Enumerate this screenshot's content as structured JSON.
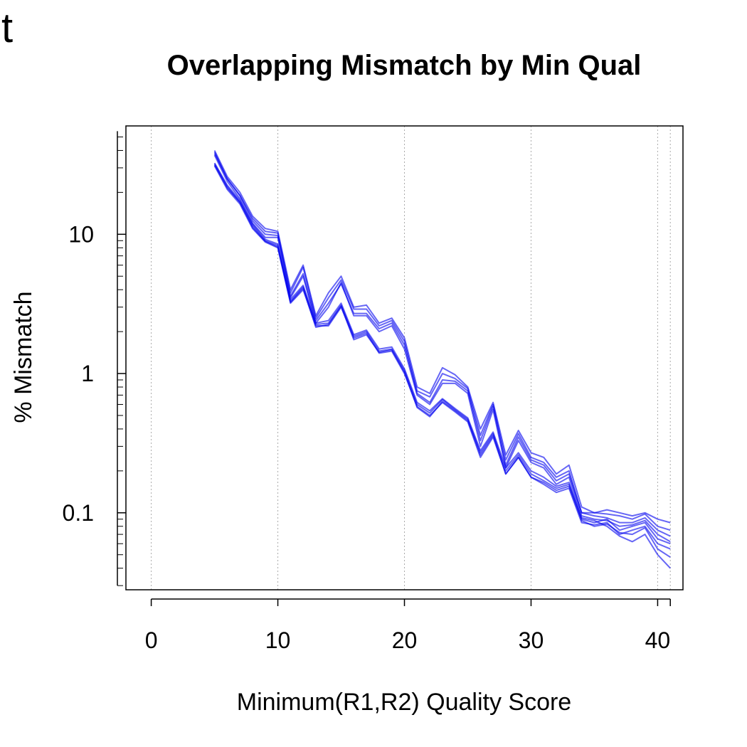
{
  "corner_label": "t",
  "chart_data": {
    "type": "line",
    "title": "Overlapping Mismatch by Min Qual",
    "xlabel": "Minimum(R1,R2) Quality Score",
    "ylabel": "% Mismatch",
    "y_scale": "log",
    "xlim": [
      -2,
      42
    ],
    "ylim": [
      0.028,
      60
    ],
    "x_ticks": [
      0,
      10,
      20,
      30,
      40,
      41
    ],
    "x_tick_labels": [
      "0",
      "10",
      "20",
      "30",
      "40",
      ""
    ],
    "y_ticks": [
      0.1,
      1,
      10
    ],
    "y_tick_labels": [
      "0.1",
      "1",
      "10"
    ],
    "grid": "vertical-dotted",
    "line_color": "#0000ee",
    "x": [
      5,
      6,
      7,
      8,
      9,
      10,
      11,
      12,
      13,
      14,
      15,
      16,
      17,
      18,
      19,
      20,
      21,
      22,
      23,
      24,
      25,
      26,
      27,
      28,
      29,
      30,
      31,
      32,
      33,
      34,
      35,
      36,
      37,
      38,
      39,
      40,
      41
    ],
    "series": [
      {
        "values": [
          40,
          26,
          20,
          13.5,
          11,
          10.5,
          4,
          6,
          2.6,
          3.8,
          5,
          3,
          3.1,
          2.3,
          2.5,
          1.8,
          0.8,
          0.72,
          1.1,
          0.98,
          0.8,
          0.4,
          0.62,
          0.26,
          0.39,
          0.27,
          0.25,
          0.19,
          0.22,
          0.11,
          0.1,
          0.105,
          0.1,
          0.095,
          0.1,
          0.09,
          0.085
        ]
      },
      {
        "values": [
          39,
          25,
          19,
          13,
          10.5,
          10.2,
          3.8,
          5.8,
          2.5,
          3.5,
          4.7,
          2.9,
          2.9,
          2.2,
          2.4,
          1.7,
          0.75,
          0.68,
          1.0,
          0.92,
          0.78,
          0.36,
          0.6,
          0.24,
          0.37,
          0.25,
          0.23,
          0.18,
          0.2,
          0.1,
          0.1,
          0.098,
          0.095,
          0.09,
          0.098,
          0.08,
          0.075
        ]
      },
      {
        "values": [
          38,
          25,
          19,
          12.5,
          10,
          9.8,
          3.6,
          5.2,
          2.4,
          3.2,
          4.4,
          2.7,
          2.7,
          2.1,
          2.3,
          1.6,
          0.72,
          0.62,
          0.9,
          0.88,
          0.75,
          0.33,
          0.58,
          0.22,
          0.35,
          0.24,
          0.22,
          0.17,
          0.19,
          0.1,
          0.095,
          0.092,
          0.085,
          0.085,
          0.092,
          0.075,
          0.068
        ]
      },
      {
        "values": [
          37,
          24,
          18,
          12,
          9.5,
          9.5,
          3.5,
          5,
          2.3,
          3,
          4.5,
          2.6,
          2.6,
          2,
          2.2,
          1.5,
          0.7,
          0.6,
          0.85,
          0.85,
          0.72,
          0.3,
          0.55,
          0.21,
          0.33,
          0.23,
          0.21,
          0.16,
          0.18,
          0.095,
          0.09,
          0.088,
          0.08,
          0.082,
          0.088,
          0.07,
          0.062
        ]
      },
      {
        "values": [
          32,
          22,
          17,
          11.5,
          9,
          8.3,
          3.3,
          4.2,
          2.25,
          2.3,
          3.1,
          1.85,
          2,
          1.45,
          1.5,
          1.05,
          0.6,
          0.52,
          0.65,
          0.55,
          0.47,
          0.27,
          0.37,
          0.2,
          0.26,
          0.19,
          0.17,
          0.15,
          0.16,
          0.09,
          0.085,
          0.09,
          0.075,
          0.08,
          0.085,
          0.065,
          0.06
        ]
      },
      {
        "values": [
          31,
          21,
          16.5,
          11,
          8.8,
          8,
          3.2,
          4,
          2.2,
          2.2,
          3,
          1.8,
          1.95,
          1.4,
          1.45,
          1.0,
          0.58,
          0.5,
          0.62,
          0.53,
          0.45,
          0.25,
          0.35,
          0.19,
          0.25,
          0.18,
          0.16,
          0.14,
          0.15,
          0.085,
          0.082,
          0.085,
          0.07,
          0.075,
          0.08,
          0.06,
          0.055
        ]
      },
      {
        "values": [
          31.5,
          21.5,
          17,
          11.2,
          8.9,
          8.1,
          3.25,
          4.1,
          2.15,
          2.25,
          3.05,
          1.75,
          1.9,
          1.42,
          1.48,
          1.02,
          0.57,
          0.49,
          0.63,
          0.54,
          0.46,
          0.26,
          0.36,
          0.19,
          0.25,
          0.18,
          0.165,
          0.145,
          0.155,
          0.088,
          0.08,
          0.083,
          0.072,
          0.07,
          0.078,
          0.055,
          0.048
        ]
      },
      {
        "values": [
          32.5,
          22.5,
          17.5,
          11.8,
          9.2,
          8.5,
          3.4,
          4.3,
          2.3,
          2.4,
          3.2,
          1.9,
          2.05,
          1.5,
          1.55,
          1.08,
          0.62,
          0.54,
          0.66,
          0.56,
          0.48,
          0.28,
          0.38,
          0.21,
          0.27,
          0.2,
          0.18,
          0.155,
          0.165,
          0.092,
          0.088,
          0.08,
          0.068,
          0.062,
          0.07,
          0.05,
          0.04
        ]
      }
    ]
  }
}
